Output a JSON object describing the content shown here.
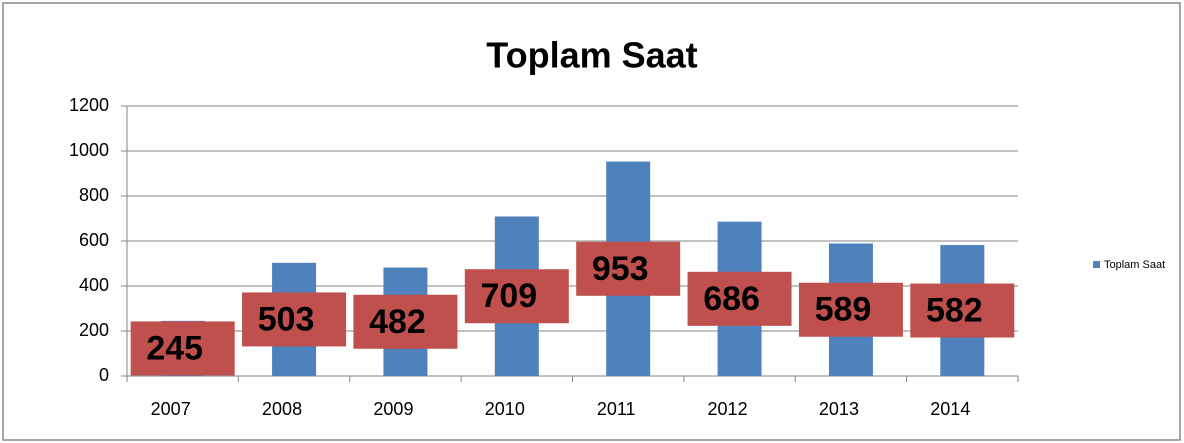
{
  "chart_data": {
    "type": "bar",
    "title": "Toplam Saat",
    "categories": [
      "2007",
      "2008",
      "2009",
      "2010",
      "2011",
      "2012",
      "2013",
      "2014"
    ],
    "series": [
      {
        "name": "Toplam Saat",
        "color": "#4f81bd",
        "values": [
          245,
          503,
          482,
          709,
          953,
          686,
          589,
          582
        ]
      }
    ],
    "label_color": "#c0504d",
    "ylim": [
      0,
      1200
    ],
    "yticks": [
      0,
      200,
      400,
      600,
      800,
      1000,
      1200
    ],
    "grid": true,
    "legend": "right"
  }
}
